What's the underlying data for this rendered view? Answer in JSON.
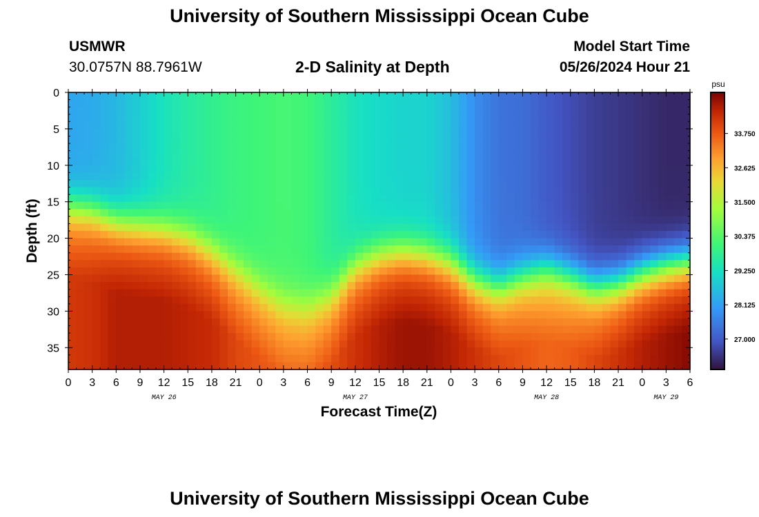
{
  "header": {
    "title": "University of Southern Mississippi Ocean Cube",
    "station_name": "USMWR",
    "station_coords": "30.0757N  88.7961W",
    "plot_title": "2-D Salinity at Depth",
    "model_start_label": "Model Start Time",
    "model_start_value": "05/26/2024 Hour 21"
  },
  "footer": {
    "title": "University of Southern Mississippi Ocean Cube"
  },
  "chart_data": {
    "type": "heatmap",
    "title": "2-D Salinity at Depth",
    "xlabel": "Forecast Time(Z)",
    "ylabel": "Depth (ft)",
    "x_hours_range": [
      0,
      78
    ],
    "x_tick_labels": [
      "0",
      "3",
      "6",
      "9",
      "12",
      "15",
      "18",
      "21",
      "0",
      "3",
      "6",
      "9",
      "12",
      "15",
      "18",
      "21",
      "0",
      "3",
      "6",
      "9",
      "12",
      "15",
      "18",
      "21",
      "0",
      "3",
      "6"
    ],
    "date_labels": [
      {
        "label": "MAY 26",
        "hour": 12
      },
      {
        "label": "MAY 27",
        "hour": 36
      },
      {
        "label": "MAY 28",
        "hour": 60
      },
      {
        "label": "MAY 29",
        "hour": 75
      }
    ],
    "ylim": [
      0,
      38
    ],
    "y_ticks": [
      0,
      5,
      10,
      15,
      20,
      25,
      30,
      35
    ],
    "y_reversed": true,
    "colorbar": {
      "unit": "psu",
      "range": [
        26.0,
        35.1
      ],
      "tick_labels": [
        "33.750",
        "32.625",
        "31.500",
        "30.375",
        "29.250",
        "28.125",
        "27.000"
      ],
      "tick_values": [
        33.75,
        32.625,
        31.5,
        30.375,
        29.25,
        28.125,
        27.0
      ]
    },
    "columns": [
      {
        "hour": 0,
        "t": 28.2,
        "z1": 15.5,
        "b": 34.2
      },
      {
        "hour": 3,
        "t": 28.3,
        "z1": 16.0,
        "b": 34.3
      },
      {
        "hour": 6,
        "t": 28.5,
        "z1": 17.5,
        "b": 34.6
      },
      {
        "hour": 9,
        "t": 28.9,
        "z1": 18.0,
        "b": 34.6
      },
      {
        "hour": 12,
        "t": 29.3,
        "z1": 18.5,
        "b": 34.6
      },
      {
        "hour": 15,
        "t": 29.6,
        "z1": 19.5,
        "b": 34.5
      },
      {
        "hour": 18,
        "t": 29.8,
        "z1": 21.5,
        "b": 34.4
      },
      {
        "hour": 21,
        "t": 30.0,
        "z1": 24.0,
        "b": 34.0
      },
      {
        "hour": 24,
        "t": 30.1,
        "z1": 26.5,
        "b": 33.8
      },
      {
        "hour": 27,
        "t": 30.2,
        "z1": 28.5,
        "b": 33.6
      },
      {
        "hour": 30,
        "t": 30.1,
        "z1": 29.0,
        "b": 33.6
      },
      {
        "hour": 33,
        "t": 29.7,
        "z1": 27.5,
        "b": 33.9
      },
      {
        "hour": 36,
        "t": 29.3,
        "z1": 23.5,
        "b": 34.3
      },
      {
        "hour": 39,
        "t": 29.1,
        "z1": 22.0,
        "b": 34.6
      },
      {
        "hour": 42,
        "t": 29.0,
        "z1": 21.5,
        "b": 34.8
      },
      {
        "hour": 45,
        "t": 29.0,
        "z1": 22.0,
        "b": 34.8
      },
      {
        "hour": 48,
        "t": 28.6,
        "z1": 23.0,
        "b": 34.6
      },
      {
        "hour": 51,
        "t": 27.8,
        "z1": 25.5,
        "b": 34.3
      },
      {
        "hour": 54,
        "t": 27.4,
        "z1": 26.5,
        "b": 34.0
      },
      {
        "hour": 57,
        "t": 27.3,
        "z1": 25.0,
        "b": 33.8
      },
      {
        "hour": 60,
        "t": 27.0,
        "z1": 24.0,
        "b": 33.6
      },
      {
        "hour": 63,
        "t": 26.8,
        "z1": 25.0,
        "b": 33.7
      },
      {
        "hour": 66,
        "t": 26.6,
        "z1": 26.5,
        "b": 34.0
      },
      {
        "hour": 69,
        "t": 26.5,
        "z1": 26.0,
        "b": 34.3
      },
      {
        "hour": 72,
        "t": 26.4,
        "z1": 24.5,
        "b": 34.6
      },
      {
        "hour": 75,
        "t": 26.3,
        "z1": 23.5,
        "b": 34.8
      },
      {
        "hour": 78,
        "t": 26.3,
        "z1": 23.0,
        "b": 35.0
      }
    ]
  }
}
